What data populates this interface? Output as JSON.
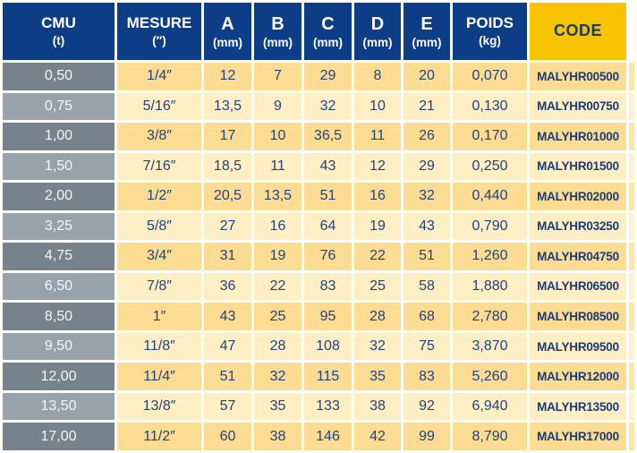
{
  "colors": {
    "header_bg": "#0d3d87",
    "code_header_bg": "#f8c301",
    "row_dark_gray": "#76838d",
    "row_light_gray": "#97a2ab",
    "row_dark_cream": "#fbdc92",
    "row_light_cream": "#fdeec3",
    "data_text": "#21437f",
    "code_text": "#1b3a78",
    "header_text": "#ffffff",
    "gridline": "#ffffff"
  },
  "table": {
    "columns": [
      {
        "id": "cmu",
        "label": "CMU",
        "sub": "(t)"
      },
      {
        "id": "mesure",
        "label": "MESURE",
        "sub": "(″)"
      },
      {
        "id": "a",
        "label": "A",
        "sub": "(mm)"
      },
      {
        "id": "b",
        "label": "B",
        "sub": "(mm)"
      },
      {
        "id": "c",
        "label": "C",
        "sub": "(mm)"
      },
      {
        "id": "d",
        "label": "D",
        "sub": "(mm)"
      },
      {
        "id": "e",
        "label": "E",
        "sub": "(mm)"
      },
      {
        "id": "poids",
        "label": "POIDS",
        "sub": "(kg)"
      },
      {
        "id": "code",
        "label": "CODE",
        "sub": ""
      }
    ],
    "rows": [
      [
        "0,50",
        "1/4″",
        "12",
        "7",
        "29",
        "8",
        "20",
        "0,070",
        "MALYHR00500"
      ],
      [
        "0,75",
        "5/16″",
        "13,5",
        "9",
        "32",
        "10",
        "21",
        "0,130",
        "MALYHR00750"
      ],
      [
        "1,00",
        "3/8″",
        "17",
        "10",
        "36,5",
        "11",
        "26",
        "0,170",
        "MALYHR01000"
      ],
      [
        "1,50",
        "7/16″",
        "18,5",
        "11",
        "43",
        "12",
        "29",
        "0,250",
        "MALYHR01500"
      ],
      [
        "2,00",
        "1/2″",
        "20,5",
        "13,5",
        "51",
        "16",
        "32",
        "0,440",
        "MALYHR02000"
      ],
      [
        "3,25",
        "5/8″",
        "27",
        "16",
        "64",
        "19",
        "43",
        "0,790",
        "MALYHR03250"
      ],
      [
        "4,75",
        "3/4″",
        "31",
        "19",
        "76",
        "22",
        "51",
        "1,260",
        "MALYHR04750"
      ],
      [
        "6,50",
        "7/8″",
        "36",
        "22",
        "83",
        "25",
        "58",
        "1,880",
        "MALYHR06500"
      ],
      [
        "8,50",
        "1″",
        "43",
        "25",
        "95",
        "28",
        "68",
        "2,780",
        "MALYHR08500"
      ],
      [
        "9,50",
        "11/8″",
        "47",
        "28",
        "108",
        "32",
        "75",
        "3,870",
        "MALYHR09500"
      ],
      [
        "12,00",
        "11/4″",
        "51",
        "32",
        "115",
        "35",
        "83",
        "5,260",
        "MALYHR12000"
      ],
      [
        "13,50",
        "13/8″",
        "57",
        "35",
        "133",
        "38",
        "92",
        "6,940",
        "MALYHR13500"
      ],
      [
        "17,00",
        "11/2″",
        "60",
        "38",
        "146",
        "42",
        "99",
        "8,790",
        "MALYHR17000"
      ]
    ]
  }
}
